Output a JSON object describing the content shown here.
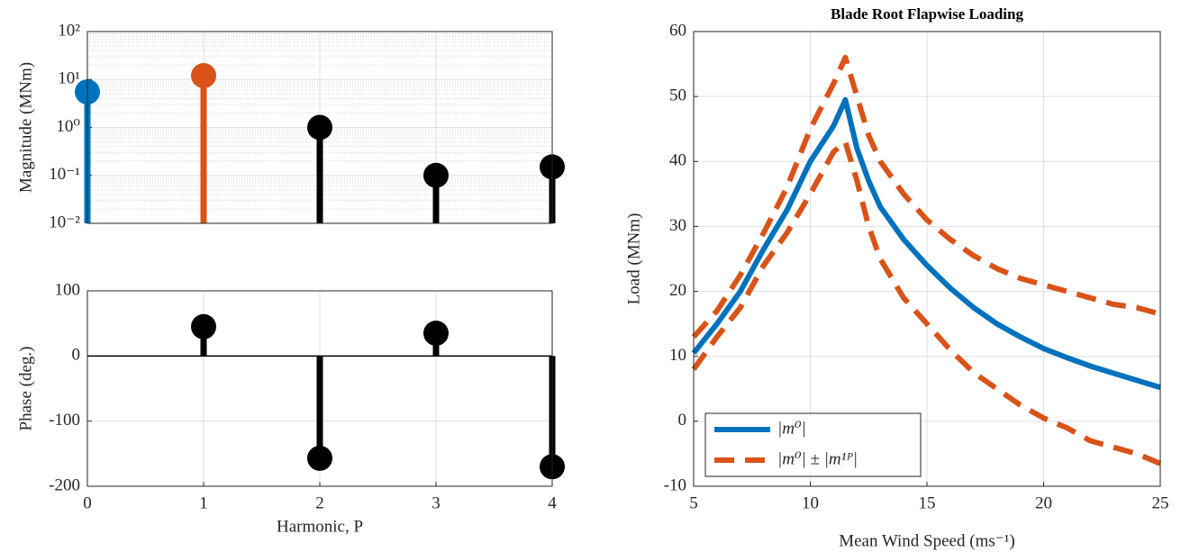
{
  "chart_data": [
    {
      "type": "stem",
      "x": [
        0,
        1,
        2,
        3,
        4
      ],
      "values": [
        5.5,
        12,
        1,
        0.1,
        0.15
      ],
      "colors": [
        "#0072bd",
        "#d95319",
        "#000000",
        "#000000",
        "#000000"
      ],
      "ylabel": "Magnitude (MNm)",
      "log_y": true,
      "xlim": [
        0,
        4
      ],
      "xticks": [
        0,
        1,
        2,
        3,
        4
      ],
      "show_xtick_labels": false,
      "ylim": [
        0.01,
        100
      ],
      "yticks": [
        {
          "value": 0.01,
          "label": "10⁻²"
        },
        {
          "value": 0.1,
          "label": "10⁻¹"
        },
        {
          "value": 1,
          "label": "10⁰"
        },
        {
          "value": 10,
          "label": "10¹"
        },
        {
          "value": 100,
          "label": "10²"
        }
      ],
      "grid": true,
      "minor_grid": true
    },
    {
      "type": "stem",
      "x": [
        0,
        1,
        2,
        3,
        4
      ],
      "values": [
        null,
        45,
        -157,
        35,
        -170
      ],
      "colors": [
        "#000000",
        "#000000",
        "#000000",
        "#000000",
        "#000000"
      ],
      "xlabel": "Harmonic, P",
      "ylabel": "Phase (deg.)",
      "xlim": [
        0,
        4
      ],
      "xticks": [
        0,
        1,
        2,
        3,
        4
      ],
      "show_xtick_labels": true,
      "ylim": [
        -200,
        100
      ],
      "yticks": [
        -200,
        -100,
        0,
        100
      ],
      "grid": true
    },
    {
      "type": "line",
      "title": "Blade Root Flapwise Loading",
      "xlabel": "Mean Wind Speed (ms⁻¹)",
      "ylabel": "Load (MNm)",
      "x": [
        5,
        6,
        7,
        8,
        9,
        10,
        11,
        11.5,
        12,
        12.5,
        13,
        14,
        15,
        16,
        17,
        18,
        19,
        20,
        21,
        22,
        23,
        24,
        25
      ],
      "series": [
        {
          "name": "|m⁰|",
          "color": "#0072bd",
          "dashed": false,
          "values": [
            10.5,
            15,
            20,
            26.5,
            32.5,
            40,
            45.5,
            49.5,
            42,
            37,
            33,
            28,
            24,
            20.5,
            17.5,
            15,
            13,
            11.2,
            9.8,
            8.5,
            7.4,
            6.3,
            5.2
          ]
        },
        {
          "name": "|m⁰| ± |m¹ᴾ|",
          "color": "#d95319",
          "dashed": true,
          "values": [
            13,
            17,
            22.5,
            29,
            36,
            45,
            52,
            56,
            50,
            44,
            40,
            35,
            31,
            28,
            25.5,
            23.5,
            22,
            21,
            20,
            19,
            18,
            17.5,
            16.5
          ]
        },
        {
          "name": null,
          "color": "#d95319",
          "dashed": true,
          "values": [
            8,
            13,
            17.5,
            24,
            29,
            35,
            41.5,
            43,
            37,
            30,
            25,
            19,
            15,
            11,
            7.5,
            5,
            2.5,
            0.5,
            -1,
            -3,
            -4,
            -5,
            -6.5
          ]
        }
      ],
      "xlim": [
        5,
        25
      ],
      "xticks": [
        5,
        10,
        15,
        20,
        25
      ],
      "show_xtick_labels": true,
      "ylim": [
        -10,
        60
      ],
      "yticks": [
        -10,
        0,
        10,
        20,
        30,
        40,
        50,
        60
      ],
      "grid": true,
      "legend": "lower left"
    }
  ]
}
